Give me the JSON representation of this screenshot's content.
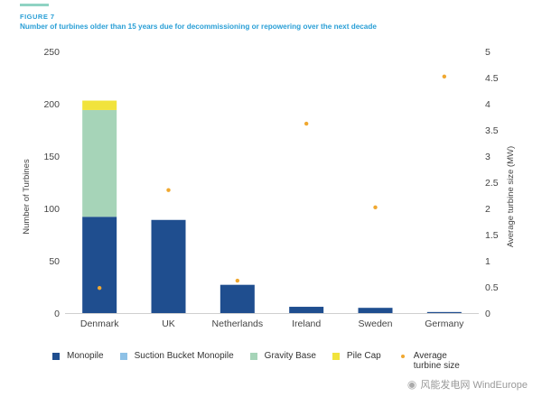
{
  "header": {
    "figure_label": "FIGURE 7",
    "title": "Number of turbines older than 15 years due for decommissioning or repowering over the next decade"
  },
  "chart_data": {
    "type": "bar",
    "stacked": true,
    "categories": [
      "Denmark",
      "UK",
      "Netherlands",
      "Ireland",
      "Sweden",
      "Germany"
    ],
    "series": [
      {
        "name": "Monopile",
        "color": "#1f4e8f",
        "values": [
          92,
          89,
          27,
          6,
          5,
          1
        ]
      },
      {
        "name": "Suction Bucket Monopile",
        "color": "#8ec1e6",
        "values": [
          0,
          0,
          0,
          0,
          0,
          0
        ]
      },
      {
        "name": "Gravity Base",
        "color": "#a6d4b8",
        "values": [
          102,
          0,
          0,
          0,
          0,
          0
        ]
      },
      {
        "name": "Pile Cap",
        "color": "#f1e33c",
        "values": [
          9,
          0,
          0,
          0,
          0,
          0
        ]
      }
    ],
    "secondary_series": {
      "name": "Average turbine size",
      "color": "#f0a830",
      "type": "scatter",
      "values": [
        0.48,
        2.35,
        0.62,
        3.62,
        2.02,
        4.52
      ]
    },
    "ylabel": "Number of Turbines",
    "ylim": [
      0,
      250
    ],
    "yticks": [
      0,
      50,
      100,
      150,
      200,
      250
    ],
    "y2label": "Average turbine size (MW)",
    "y2lim": [
      0,
      5
    ],
    "y2ticks": [
      "0",
      "0.5",
      "1",
      "1.5",
      "2",
      "2.5",
      "3",
      "3.5",
      "4",
      "4.5",
      "5"
    ],
    "grid": false,
    "legend_position": "bottom"
  },
  "legend": {
    "items": [
      {
        "label": "Monopile",
        "color": "#1f4e8f"
      },
      {
        "label": "Suction Bucket Monopile",
        "color": "#8ec1e6"
      },
      {
        "label": "Gravity Base",
        "color": "#a6d4b8"
      },
      {
        "label": "Pile Cap",
        "color": "#f1e33c"
      }
    ],
    "dot_label_line1": "Average",
    "dot_label_line2": "turbine size",
    "dot_color": "#f0a830"
  },
  "watermark": {
    "icon": "wechat-icon",
    "text": "风能发电网 WindEurope"
  }
}
